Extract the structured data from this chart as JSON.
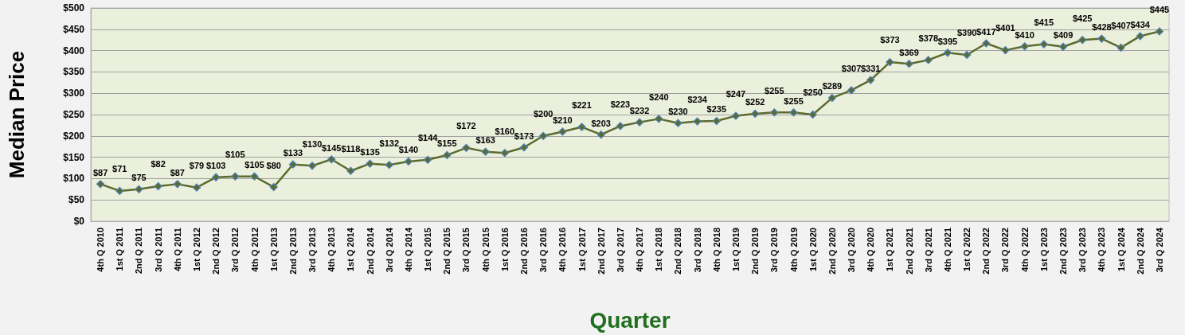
{
  "chart_data": {
    "type": "line",
    "xlabel": "Quarter",
    "ylabel": "Median Price",
    "categories": [
      "4th Q 2010",
      "1st Q 2011",
      "2nd Q 2011",
      "3rd Q 2011",
      "4th Q 2011",
      "1st Q 2012",
      "2nd Q 2012",
      "3rd Q 2012",
      "4th Q 2012",
      "1st Q 2013",
      "2nd Q 2013",
      "3rd Q 2013",
      "4th Q 2013",
      "1st Q 2014",
      "2nd Q 2014",
      "3rd Q 2014",
      "4th Q 2014",
      "1st Q 2015",
      "2nd Q 2015",
      "3rd Q 2015",
      "4th Q 2015",
      "1st Q 2016",
      "2nd Q 2016",
      "3rd Q 2016",
      "4th Q 2016",
      "1st Q 2017",
      "2nd Q 2017",
      "3rd Q 2017",
      "4th Q 2017",
      "1st Q 2018",
      "2nd Q 2018",
      "3rd Q 2018",
      "4th Q 2018",
      "1st Q 2019",
      "2nd Q 2019",
      "3rd Q 2019",
      "4th Q 2019",
      "1st Q 2020",
      "2nd Q 2020",
      "3rd Q 2020",
      "4th Q 2020",
      "1st Q 2021",
      "2nd Q 2021",
      "3rd Q 2021",
      "4th Q 2021",
      "1st Q 2022",
      "2nd Q 2022",
      "3rd Q 2022",
      "4th Q 2022",
      "1st Q 2023",
      "2nd Q 2023",
      "3rd Q 2023",
      "4th Q 2023",
      "1st Q 2024",
      "2nd Q 2024",
      "3rd Q 2024"
    ],
    "series": [
      {
        "color": "#5b6b2e",
        "values": [
          87,
          71,
          75,
          82,
          87,
          79,
          103,
          105,
          105,
          80,
          133,
          130,
          145,
          118,
          135,
          132,
          140,
          144,
          155,
          172,
          163,
          160,
          173,
          200,
          210,
          221,
          203,
          223,
          232,
          240,
          230,
          234,
          235,
          247,
          252,
          255,
          255,
          250,
          289,
          307,
          331,
          373,
          369,
          378,
          395,
          390,
          417,
          401,
          410,
          415,
          409,
          425,
          428,
          407,
          434,
          445
        ],
        "value_labels": [
          "$87",
          "$71",
          "$75",
          "$82",
          "$87",
          "$79",
          "$103",
          "$105",
          "$105",
          "$80",
          "$133",
          "$130",
          "$145",
          "$118",
          "$135",
          "$132",
          "$140",
          "$144",
          "$155",
          "$172",
          "$163",
          "$160",
          "$173",
          "$200",
          "$210",
          "$221",
          "$203",
          "$223",
          "$232",
          "$240",
          "$230",
          "$234",
          "$235",
          "$247",
          "$252",
          "$255",
          "$255",
          "$250",
          "$289",
          "$307",
          "$331",
          "$373",
          "$369",
          "$378",
          "$395",
          "$390",
          "$417",
          "$401",
          "$410",
          "$415",
          "$409",
          "$425",
          "$428",
          "$407",
          "$434",
          "$445"
        ]
      }
    ],
    "ylim": [
      0,
      500
    ],
    "yticks": [
      {
        "value": 0,
        "label": "$0"
      },
      {
        "value": 50,
        "label": "$50"
      },
      {
        "value": 100,
        "label": "$100"
      },
      {
        "value": 150,
        "label": "$150"
      },
      {
        "value": 200,
        "label": "$200"
      },
      {
        "value": 250,
        "label": "$250"
      },
      {
        "value": 300,
        "label": "$300"
      },
      {
        "value": 350,
        "label": "$350"
      },
      {
        "value": 400,
        "label": "$400"
      },
      {
        "value": 450,
        "label": "$450"
      },
      {
        "value": 500,
        "label": "$500"
      }
    ],
    "grid": "y",
    "marker": "diamond",
    "line_style": "solid"
  }
}
